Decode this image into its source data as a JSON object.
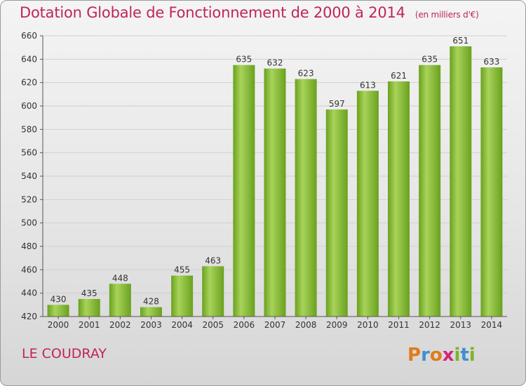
{
  "chart_data": {
    "type": "bar",
    "title": "Dotation Globale de Fonctionnement de 2000 à 2014",
    "unit_label": "(en milliers d'€)",
    "categories": [
      "2000",
      "2001",
      "2002",
      "2003",
      "2004",
      "2005",
      "2006",
      "2007",
      "2008",
      "2009",
      "2010",
      "2011",
      "2012",
      "2013",
      "2014"
    ],
    "values": [
      430,
      435,
      448,
      428,
      455,
      463,
      635,
      632,
      623,
      597,
      613,
      621,
      635,
      651,
      633
    ],
    "ylim": [
      420,
      660
    ],
    "yticks": [
      420,
      440,
      460,
      480,
      500,
      520,
      540,
      560,
      580,
      600,
      620,
      640,
      660
    ],
    "xlabel": "",
    "ylabel": "",
    "grid": true,
    "bar_color": "#7ab52a",
    "bar_light_color": "#a8d35a"
  },
  "footer": {
    "location": "LE COUDRAY",
    "logo_letters": [
      "P",
      "r",
      "o",
      "x",
      "i",
      "t",
      "i"
    ],
    "logo_colors": [
      "#e07b1a",
      "#3f8fd2",
      "#e07b1a",
      "#d4237a",
      "#7ab52a",
      "#3f8fd2",
      "#7ab52a"
    ]
  },
  "colors": {
    "title": "#c0245c",
    "axis_text": "#333333",
    "grid": "#d0d0d0"
  }
}
